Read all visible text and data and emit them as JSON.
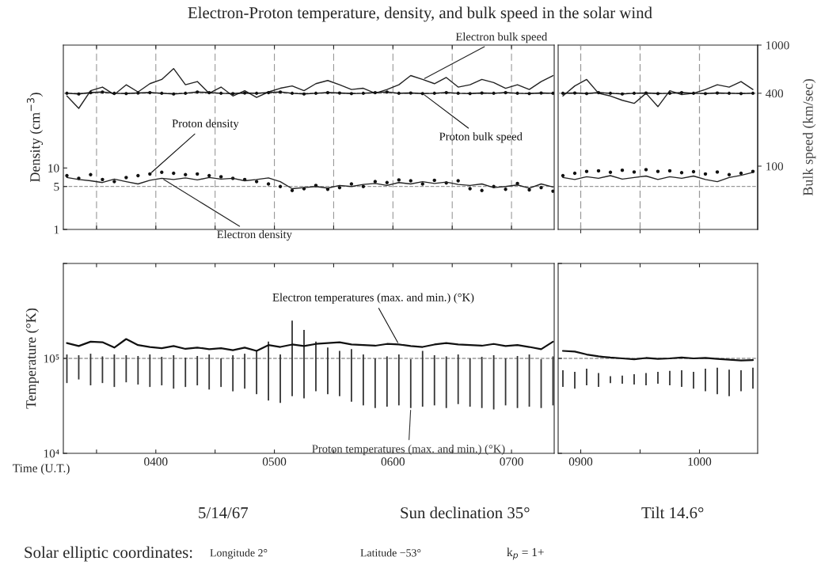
{
  "chart_data": [
    {
      "type": "line",
      "title": "Electron-Proton temperature, density, and bulk speed in the solar wind",
      "ylabel": "Density (cm$^{−3}$)",
      "log": "y",
      "grid": "x",
      "tick_labels": "y",
      "x": [
        325,
        335,
        345,
        355,
        365,
        375,
        385,
        395,
        405,
        415,
        425,
        435,
        445,
        455,
        465,
        475,
        485,
        495,
        505,
        515,
        525,
        535,
        545,
        555,
        565,
        575,
        585,
        595,
        605,
        615,
        625,
        635,
        645,
        655,
        665,
        675,
        685,
        695,
        705,
        715,
        725,
        735
      ],
      "xlim": [
        322,
        736
      ],
      "xticks": [
        350,
        400,
        450,
        500,
        550,
        600,
        650,
        700
      ],
      "ylim": [
        1,
        1000
      ],
      "yticks": [
        1,
        5,
        10
      ],
      "ref_lines": [
        {
          "axis": "y",
          "value": 5,
          "color": "#999999",
          "line_style": "dashed"
        }
      ],
      "series": [
        {
          "name": "Electron density",
          "color": "#222222",
          "values": [
            7.0,
            6.5,
            6.2,
            5.8,
            6.6,
            6.0,
            5.5,
            6.3,
            6.8,
            6.5,
            6.9,
            6.4,
            7.0,
            6.6,
            6.8,
            6.2,
            6.5,
            6.9,
            6.0,
            4.6,
            4.8,
            5.0,
            4.7,
            5.2,
            5.0,
            5.4,
            5.6,
            5.2,
            5.8,
            5.5,
            6.0,
            5.6,
            5.9,
            5.4,
            5.2,
            5.5,
            4.8,
            5.0,
            5.3,
            4.7,
            5.5,
            4.9
          ]
        },
        {
          "name": "Proton density",
          "type": "scatter",
          "color": "#111111",
          "marker": "circle",
          "values": [
            7.5,
            6.8,
            7.8,
            6.5,
            6.0,
            7.0,
            7.5,
            8.0,
            8.5,
            8.2,
            7.8,
            8.0,
            7.5,
            7.2,
            6.8,
            6.5,
            6.0,
            5.5,
            5.0,
            4.3,
            4.6,
            5.2,
            4.5,
            4.8,
            5.5,
            5.0,
            6.0,
            5.8,
            6.4,
            6.2,
            5.5,
            6.3,
            5.7,
            6.2,
            4.6,
            4.3,
            5.0,
            4.5,
            5.6,
            4.4,
            4.8,
            4.2
          ]
        }
      ]
    },
    {
      "type": "line",
      "log": "y",
      "tick_labels": false,
      "x": [
        325,
        335,
        345,
        355,
        365,
        375,
        385,
        395,
        405,
        415,
        425,
        435,
        445,
        455,
        465,
        475,
        485,
        495,
        505,
        515,
        525,
        535,
        545,
        555,
        565,
        575,
        585,
        595,
        605,
        615,
        625,
        635,
        645,
        655,
        665,
        675,
        685,
        695,
        705,
        715,
        725,
        735
      ],
      "xlim": [
        322,
        736
      ],
      "ylim": [
        30,
        1000
      ],
      "ref_lines": [
        {
          "axis": "y",
          "value": 400,
          "color": "#999999",
          "line_style": "dashed"
        }
      ],
      "series": [
        {
          "name": "Electron bulk speed",
          "color": "#222222",
          "values": [
            380,
            300,
            420,
            450,
            390,
            470,
            410,
            480,
            520,
            640,
            470,
            500,
            400,
            450,
            380,
            420,
            370,
            410,
            440,
            460,
            420,
            480,
            510,
            470,
            430,
            440,
            400,
            430,
            470,
            560,
            520,
            480,
            540,
            450,
            470,
            520,
            490,
            440,
            470,
            430,
            500,
            560
          ]
        },
        {
          "name": "Proton bulk speed",
          "color": "#111111",
          "marker": "circle",
          "values": [
            400,
            395,
            405,
            410,
            400,
            398,
            402,
            405,
            400,
            395,
            400,
            410,
            405,
            400,
            398,
            402,
            400,
            405,
            410,
            400,
            395,
            400,
            405,
            402,
            398,
            400,
            405,
            410,
            400,
            402,
            398,
            400,
            405,
            400,
            398,
            402,
            400,
            405,
            400,
            398,
            402,
            400
          ]
        }
      ]
    },
    {
      "type": "line",
      "ylabel": "Bulk speed (km/sec)",
      "log": "y",
      "grid": "x",
      "tick_labels": "y",
      "x": [
        885,
        895,
        905,
        915,
        925,
        935,
        945,
        955,
        965,
        975,
        985,
        995,
        1005,
        1015,
        1025,
        1035,
        1045
      ],
      "xlim": [
        881,
        1049
      ],
      "xticks": [
        900,
        950,
        1000
      ],
      "ylim": [
        30,
        1000
      ],
      "yticks": [
        100,
        400,
        1000
      ],
      "ref_lines": [
        {
          "axis": "y",
          "value": 400,
          "color": "#999999",
          "line_style": "dashed"
        }
      ],
      "series": [
        {
          "color": "#222222",
          "values": [
            380,
            460,
            520,
            400,
            380,
            350,
            330,
            400,
            310,
            420,
            390,
            400,
            430,
            470,
            450,
            500,
            430
          ]
        },
        {
          "color": "#111111",
          "marker": "circle",
          "values": [
            400,
            402,
            398,
            405,
            400,
            395,
            400,
            402,
            398,
            400,
            405,
            400,
            398,
            402,
            400,
            398,
            400
          ]
        }
      ]
    },
    {
      "type": "line",
      "log": "y",
      "grid": "x",
      "tick_labels": false,
      "x": [
        885,
        895,
        905,
        915,
        925,
        935,
        945,
        955,
        965,
        975,
        985,
        995,
        1005,
        1015,
        1025,
        1035,
        1045
      ],
      "xlim": [
        881,
        1049
      ],
      "xticks": [
        900,
        950,
        1000
      ],
      "ylim": [
        1,
        1000
      ],
      "ref_lines": [
        {
          "axis": "y",
          "value": 5,
          "color": "#999999",
          "line_style": "dashed"
        }
      ],
      "series": [
        {
          "color": "#222222",
          "values": [
            7.0,
            6.5,
            7.2,
            6.8,
            7.5,
            6.6,
            7.0,
            7.4,
            6.5,
            7.2,
            6.8,
            7.4,
            6.5,
            6.0,
            7.0,
            7.6,
            8.5
          ]
        },
        {
          "type": "scatter",
          "color": "#111111",
          "marker": "circle",
          "values": [
            7.5,
            8.2,
            8.8,
            9.0,
            8.5,
            9.2,
            8.6,
            9.4,
            8.8,
            9.0,
            8.4,
            8.7,
            8.0,
            8.6,
            7.8,
            8.2,
            8.8
          ]
        }
      ]
    },
    {
      "type": "line",
      "ylabel": "Temperature (°K)",
      "xlabel": "Time (U.T.)",
      "log": "y",
      "x": [
        325,
        335,
        345,
        355,
        365,
        375,
        385,
        395,
        405,
        415,
        425,
        435,
        445,
        455,
        465,
        475,
        485,
        495,
        505,
        515,
        525,
        535,
        545,
        555,
        565,
        575,
        585,
        595,
        605,
        615,
        625,
        635,
        645,
        655,
        665,
        675,
        685,
        695,
        705,
        715,
        725,
        735
      ],
      "xlim": [
        322,
        736
      ],
      "xticks": [
        {
          "value": 350,
          "label": null
        },
        {
          "value": 400,
          "label": "0400"
        },
        {
          "value": 450,
          "label": null
        },
        {
          "value": 500,
          "label": "0500"
        },
        {
          "value": 550,
          "label": null
        },
        {
          "value": 600,
          "label": "0600"
        },
        {
          "value": 650,
          "label": null
        },
        {
          "value": 700,
          "label": "0700"
        }
      ],
      "ylim": [
        10000,
        1000000
      ],
      "yticks": [
        {
          "value": 10000,
          "label": "10⁴"
        },
        {
          "value": 100000,
          "label": "10⁵"
        },
        {
          "value": 1000000,
          "label": null
        }
      ],
      "ref_lines": [
        {
          "axis": "y",
          "value": 100000,
          "color": "#999999",
          "line_style": "dashed"
        }
      ],
      "series": [
        {
          "name": "Electron temperatures (max. and min.) (°K)",
          "color": "#111111",
          "values": [
            145000,
            135000,
            150000,
            148000,
            130000,
            160000,
            138000,
            132000,
            128000,
            135000,
            126000,
            130000,
            125000,
            128000,
            122000,
            130000,
            120000,
            138000,
            132000,
            140000,
            135000,
            142000,
            145000,
            148000,
            140000,
            138000,
            136000,
            142000,
            140000,
            135000,
            132000,
            140000,
            145000,
            140000,
            138000,
            136000,
            142000,
            135000,
            138000,
            132000,
            125000,
            150000
          ]
        },
        {
          "name": "Proton temperatures (max. and min.) (°K)",
          "type": "bar",
          "color": "#333333",
          "base": [
            55000,
            60000,
            52000,
            55000,
            50000,
            56000,
            53000,
            50000,
            52000,
            48000,
            50000,
            52000,
            47000,
            50000,
            45000,
            48000,
            42000,
            36000,
            34000,
            40000,
            38000,
            45000,
            42000,
            40000,
            35000,
            32000,
            30000,
            31000,
            32000,
            30000,
            31000,
            32000,
            30000,
            33000,
            31000,
            30000,
            29000,
            32000,
            30000,
            31000,
            30000,
            32000
          ],
          "values": [
            55000,
            48000,
            60000,
            50000,
            60000,
            52000,
            53000,
            60000,
            52000,
            60000,
            52000,
            54000,
            63000,
            50000,
            63000,
            64000,
            78000,
            114000,
            76000,
            210000,
            162000,
            105000,
            88000,
            80000,
            90000,
            78000,
            70000,
            74000,
            78000,
            68000,
            89000,
            76000,
            75000,
            77000,
            69000,
            74000,
            79000,
            68000,
            76000,
            79000,
            68000,
            73000
          ]
        }
      ],
      "annotations": [
        "5/14/67",
        "Sun declination 35°",
        "Tilt 14.6°",
        "Solar elliptic coordinates:",
        "Longitude 2°",
        "Latitude −53°",
        "k$_{p}$ = 1+"
      ]
    },
    {
      "type": "line",
      "log": "y",
      "tick_labels": "x",
      "x": [
        885,
        895,
        905,
        915,
        925,
        935,
        945,
        955,
        965,
        975,
        985,
        995,
        1005,
        1015,
        1025,
        1035,
        1045
      ],
      "xlim": [
        881,
        1049
      ],
      "xticks": [
        {
          "value": 900,
          "label": "0900"
        },
        {
          "value": 950,
          "label": null
        },
        {
          "value": 1000,
          "label": "1000"
        }
      ],
      "ylim": [
        10000,
        1000000
      ],
      "yticks": [
        10000,
        100000,
        1000000
      ],
      "ref_lines": [
        {
          "axis": "y",
          "value": 100000,
          "color": "#999999",
          "line_style": "dashed"
        }
      ],
      "series": [
        {
          "color": "#111111",
          "values": [
            120000,
            118000,
            110000,
            105000,
            102000,
            100000,
            98000,
            101000,
            99000,
            100000,
            102000,
            100000,
            101000,
            99000,
            97000,
            95000,
            96000
          ]
        },
        {
          "type": "bar",
          "color": "#333333",
          "base": [
            50000,
            48000,
            52000,
            50000,
            55000,
            54000,
            53000,
            52000,
            54000,
            52000,
            50000,
            48000,
            45000,
            42000,
            40000,
            45000,
            48000
          ],
          "values": [
            25000,
            24000,
            26000,
            20000,
            10000,
            12000,
            15000,
            18000,
            18000,
            22000,
            25000,
            24000,
            33000,
            38000,
            36000,
            30000,
            32000
          ]
        }
      ]
    }
  ]
}
